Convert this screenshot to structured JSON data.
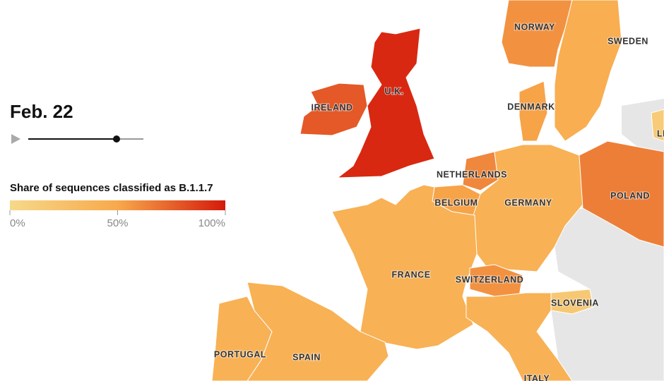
{
  "date": "Feb. 22",
  "legend": {
    "title": "Share of sequences classified as B.1.1.7",
    "lim": [
      0,
      100
    ],
    "colors": [
      "#f6d98a",
      "#f8a94b",
      "#d41a0b"
    ],
    "ticks": [
      {
        "value": 0,
        "label": "0%"
      },
      {
        "value": 50,
        "label": "50%"
      },
      {
        "value": 100,
        "label": "100%"
      }
    ]
  },
  "regions": [
    {
      "name": "U.K.",
      "share": 95
    },
    {
      "name": "IRELAND",
      "share": 78
    },
    {
      "name": "NORWAY",
      "share": 58
    },
    {
      "name": "SWEDEN",
      "share": 45
    },
    {
      "name": "DENMARK",
      "share": 52
    },
    {
      "name": "NETHERLANDS",
      "share": 62
    },
    {
      "name": "BELGIUM",
      "share": 52
    },
    {
      "name": "GERMANY",
      "share": 42
    },
    {
      "name": "POLAND",
      "share": 65
    },
    {
      "name": "FRANCE",
      "share": 42
    },
    {
      "name": "SWITZERLAND",
      "share": 58
    },
    {
      "name": "SLOVENIA",
      "share": 18
    },
    {
      "name": "PORTUGAL",
      "share": 42
    },
    {
      "name": "SPAIN",
      "share": 42
    },
    {
      "name": "ITALY",
      "share": 42
    },
    {
      "name": "LI",
      "share": 15
    }
  ]
}
